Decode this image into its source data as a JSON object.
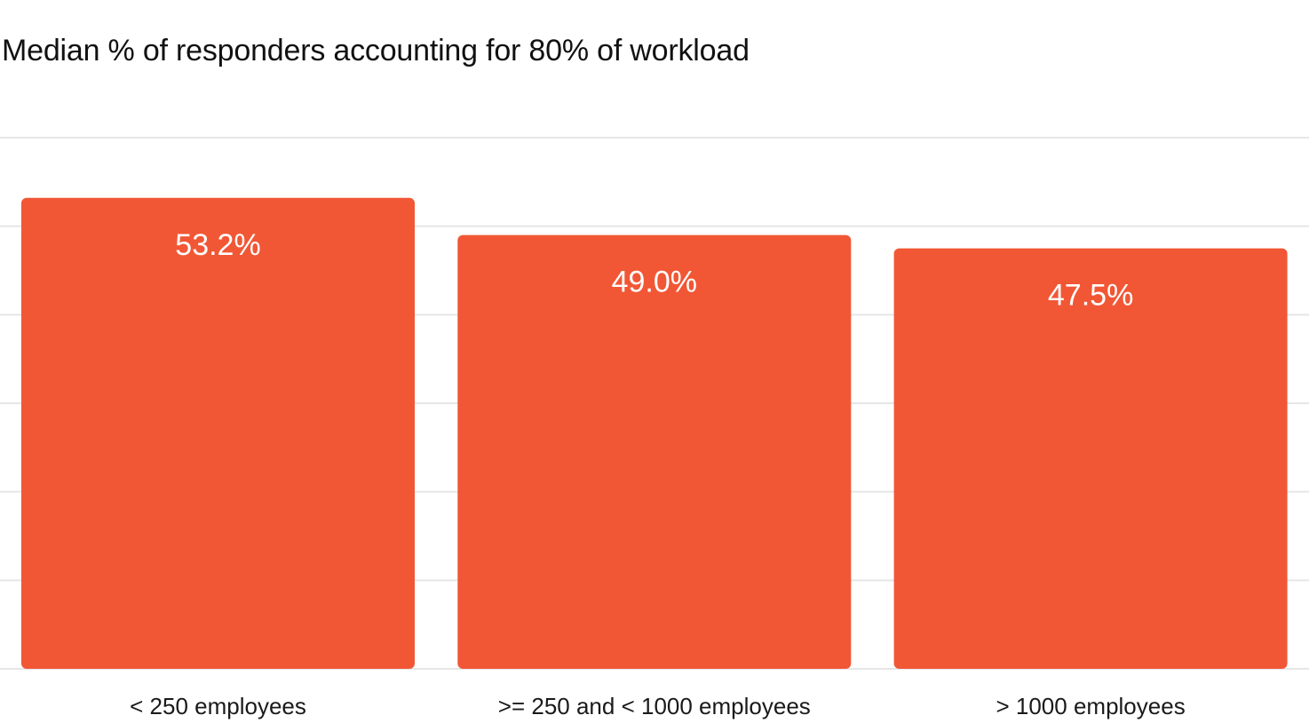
{
  "chart_data": {
    "type": "bar",
    "title": "Median % of responders accounting for 80% of workload",
    "xlabel": "",
    "ylabel": "",
    "categories": [
      "< 250 employees",
      ">= 250 and < 1000 employees",
      "> 1000 employees"
    ],
    "values": [
      53.2,
      49.0,
      47.5
    ],
    "data_labels": [
      "53.2%",
      "49.0%",
      "47.5%"
    ],
    "ylim": [
      0,
      60
    ],
    "grid": true,
    "legend": "none",
    "bar_color": "#f15735",
    "gridline_color": "#e6e6e6",
    "label_color": "#ffffff"
  }
}
